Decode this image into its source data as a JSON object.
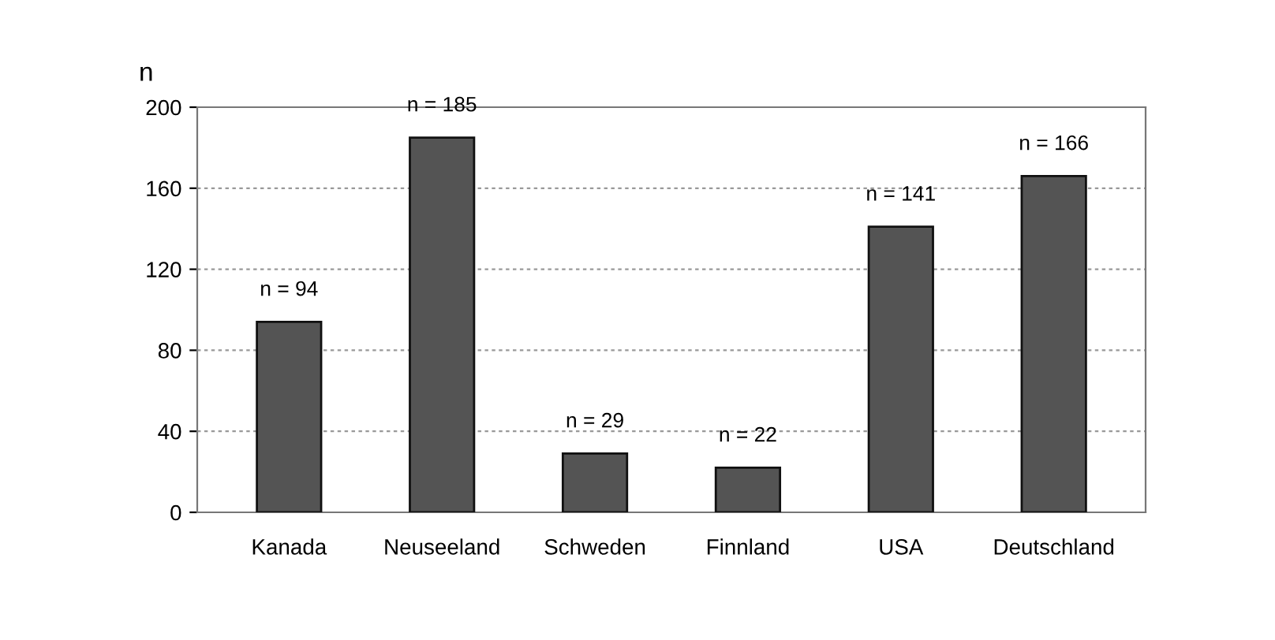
{
  "chart_data": {
    "type": "bar",
    "ylabel": "n",
    "categories": [
      "Kanada",
      "Neuseeland",
      "Schweden",
      "Finnland",
      "USA",
      "Deutschland"
    ],
    "values": [
      94,
      185,
      29,
      22,
      141,
      166
    ],
    "value_labels": [
      "n = 94",
      "n = 185",
      "n = 29",
      "n = 22",
      "n = 141",
      "n = 166"
    ],
    "color": "#545454",
    "ylim": [
      0,
      200
    ],
    "yticks": [
      0,
      40,
      80,
      120,
      160,
      200
    ],
    "grid": "y"
  }
}
